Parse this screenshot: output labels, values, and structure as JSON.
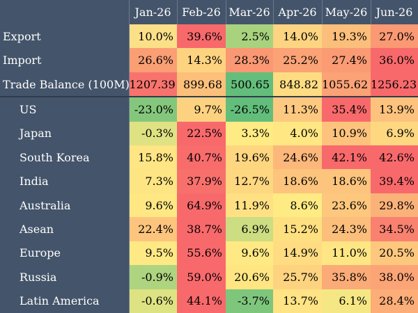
{
  "chart_data": {
    "type": "heatmap",
    "columns": [
      "Jan-26",
      "Feb-26",
      "Mar-26",
      "Apr-26",
      "May-26",
      "Jun-26"
    ],
    "rows": [
      {
        "label": "Export",
        "indent": 0,
        "values": [
          "10.0%",
          "39.6%",
          "2.5%",
          "14.0%",
          "19.3%",
          "27.0%"
        ],
        "colors": [
          "#fbe088",
          "#f8696b",
          "#a8d27e",
          "#fdd481",
          "#fcbe7b",
          "#fa9973"
        ]
      },
      {
        "label": "Import",
        "indent": 0,
        "values": [
          "26.6%",
          "14.3%",
          "28.3%",
          "25.2%",
          "27.4%",
          "36.0%"
        ],
        "colors": [
          "#fa9e74",
          "#fdd380",
          "#fa9873",
          "#fba376",
          "#fa9b74",
          "#f8696b"
        ]
      },
      {
        "label": "Trade Balance (100M)",
        "indent": 0,
        "values": [
          "1207.39",
          "899.68",
          "500.65",
          "848.82",
          "1055.62",
          "1256.23"
        ],
        "colors": [
          "#f8736d",
          "#fcc07b",
          "#63be7b",
          "#fedc82",
          "#fba276",
          "#f8696b"
        ]
      },
      {
        "label": "US",
        "indent": 1,
        "values": [
          "-23.0%",
          "9.7%",
          "-26.5%",
          "11.3%",
          "35.4%",
          "13.9%"
        ],
        "colors": [
          "#84c77c",
          "#fcd280",
          "#63be7b",
          "#fdc980",
          "#f8696b",
          "#fdc27d"
        ]
      },
      {
        "label": "Japan",
        "indent": 1,
        "values": [
          "-0.3%",
          "22.5%",
          "3.3%",
          "4.0%",
          "10.9%",
          "6.9%"
        ],
        "colors": [
          "#dfe283",
          "#f8696b",
          "#ffeb84",
          "#ffe783",
          "#fdc37d",
          "#fed881"
        ]
      },
      {
        "label": "South Korea",
        "indent": 1,
        "values": [
          "15.8%",
          "40.7%",
          "19.6%",
          "24.6%",
          "42.1%",
          "42.6%"
        ],
        "colors": [
          "#ffe583",
          "#f86c6c",
          "#fed680",
          "#fcb77a",
          "#f8696b",
          "#f8696b"
        ]
      },
      {
        "label": "India",
        "indent": 1,
        "values": [
          "7.3%",
          "37.9%",
          "12.7%",
          "18.6%",
          "18.6%",
          "39.4%"
        ],
        "colors": [
          "#fee583",
          "#f8706c",
          "#fed781",
          "#fdc47d",
          "#fdc47d",
          "#f8696b"
        ]
      },
      {
        "label": "Australia",
        "indent": 1,
        "values": [
          "9.6%",
          "64.9%",
          "11.9%",
          "8.6%",
          "23.6%",
          "29.8%"
        ],
        "colors": [
          "#ffe884",
          "#f8696b",
          "#ffe183",
          "#ffeb84",
          "#fdc77e",
          "#fbb279"
        ]
      },
      {
        "label": "Asean",
        "indent": 1,
        "values": [
          "22.4%",
          "38.7%",
          "6.9%",
          "15.2%",
          "24.3%",
          "34.5%"
        ],
        "colors": [
          "#fdc47d",
          "#f8696b",
          "#ccdd82",
          "#fee080",
          "#fcbe7b",
          "#f9816f"
        ]
      },
      {
        "label": "Europe",
        "indent": 1,
        "values": [
          "9.5%",
          "55.6%",
          "9.6%",
          "14.9%",
          "11.0%",
          "20.5%"
        ],
        "colors": [
          "#ffe984",
          "#f8696b",
          "#ffe984",
          "#ffdc82",
          "#ffe684",
          "#fec77e"
        ]
      },
      {
        "label": "Russia",
        "indent": 1,
        "values": [
          "-0.9%",
          "59.0%",
          "20.6%",
          "25.7%",
          "35.8%",
          "38.0%"
        ],
        "colors": [
          "#aed47f",
          "#f8696b",
          "#ffe683",
          "#fed380",
          "#fbab77",
          "#fba476"
        ]
      },
      {
        "label": "Latin America",
        "indent": 1,
        "values": [
          "-0.6%",
          "44.1%",
          "-3.7%",
          "13.7%",
          "6.1%",
          "28.4%"
        ],
        "colors": [
          "#dde383",
          "#f8696b",
          "#7fc67d",
          "#ffe384",
          "#f5e884",
          "#fcad78"
        ]
      }
    ],
    "separator_after_row": 2,
    "colors": {
      "header_bg": "#44546a",
      "header_text": "#ffffff"
    }
  }
}
